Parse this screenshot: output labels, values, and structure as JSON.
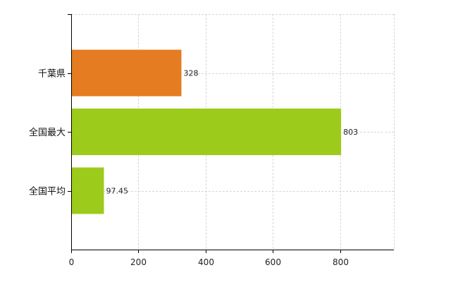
{
  "chart_data": {
    "type": "bar",
    "orientation": "horizontal",
    "categories": [
      "千葉県",
      "全国最大",
      "全国平均"
    ],
    "values": [
      328,
      803,
      97.45
    ],
    "value_labels": [
      "328",
      "803",
      "97.45"
    ],
    "bar_colors": [
      "#e57c22",
      "#9ccb1c",
      "#9ccb1c"
    ],
    "xlim": [
      0,
      960
    ],
    "xticks": [
      0,
      200,
      400,
      600,
      800
    ],
    "xtick_labels": [
      "0",
      "200",
      "400",
      "600",
      "800"
    ],
    "grid": true,
    "legend": "none"
  }
}
